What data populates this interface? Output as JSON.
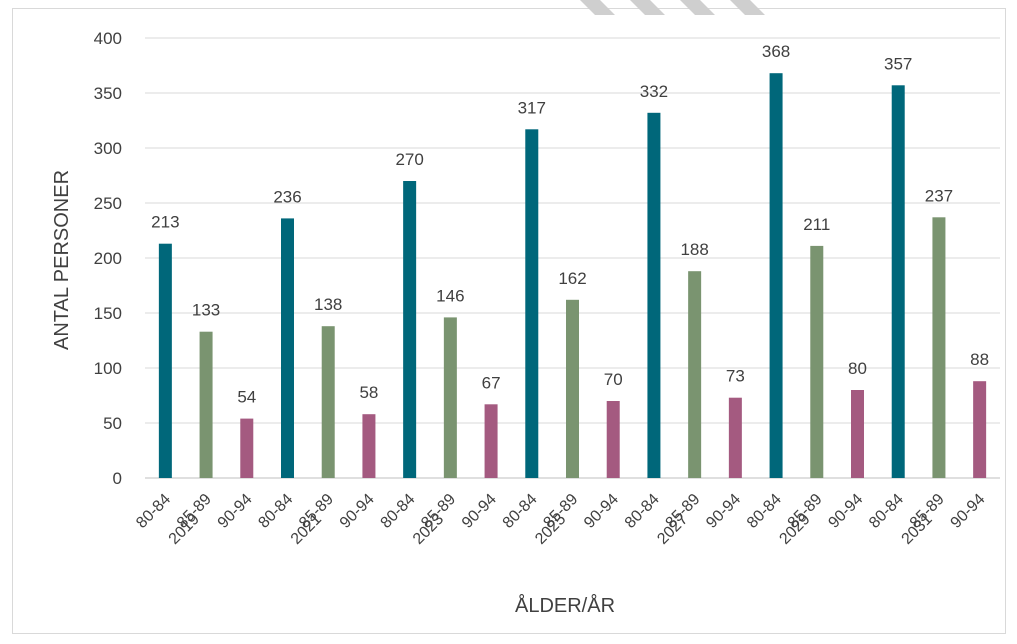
{
  "chart_data": {
    "type": "bar",
    "ylabel": "ANTAL PERSONER",
    "xlabel": "ÅLDER/ÅR",
    "ylim": [
      0,
      400
    ],
    "yticks": [
      0,
      50,
      100,
      150,
      200,
      250,
      300,
      350,
      400
    ],
    "grid": true,
    "legend": "none",
    "years": [
      "2019",
      "2021",
      "2023",
      "2025",
      "2027",
      "2029",
      "2031"
    ],
    "age_groups": [
      "80-84",
      "85-89",
      "90-94"
    ],
    "series": [
      {
        "age": "80-84",
        "color": "#00677a",
        "values": [
          213,
          236,
          270,
          317,
          332,
          368,
          357
        ]
      },
      {
        "age": "85-89",
        "color": "#7a9470",
        "values": [
          133,
          138,
          146,
          162,
          188,
          211,
          237
        ]
      },
      {
        "age": "90-94",
        "color": "#a45a80",
        "values": [
          54,
          58,
          67,
          70,
          73,
          80,
          88
        ]
      }
    ]
  }
}
